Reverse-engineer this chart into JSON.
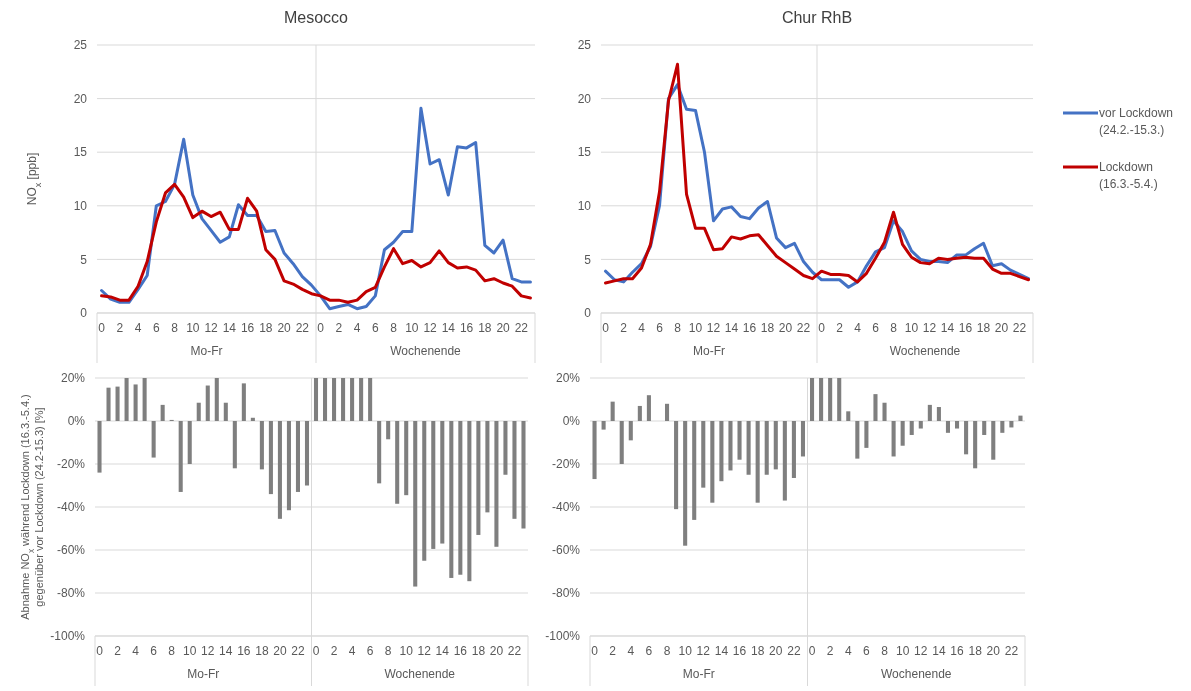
{
  "chart_data": [
    {
      "type": "line",
      "title": "Mesocco",
      "ylabel": "NO$_{x}$ [ppb]",
      "categories": [
        "0",
        null,
        "2",
        null,
        "4",
        null,
        "6",
        null,
        "8",
        null,
        "10",
        null,
        "12",
        null,
        "14",
        null,
        "16",
        null,
        "18",
        null,
        "20",
        null,
        "22",
        null,
        "0",
        null,
        "2",
        null,
        "4",
        null,
        "6",
        null,
        "8",
        null,
        "10",
        null,
        "12",
        null,
        "14",
        null,
        "16",
        null,
        "18",
        null,
        "20",
        null,
        "22",
        null
      ],
      "series": [
        {
          "color": "#4472c4",
          "values": [
            2.1,
            1.3,
            1.0,
            1.0,
            2.2,
            3.5,
            10.0,
            10.4,
            12.0,
            16.2,
            11.0,
            8.8,
            7.7,
            6.6,
            7.1,
            10.1,
            9.1,
            9.1,
            7.6,
            7.7,
            5.6,
            4.6,
            3.4,
            2.6,
            1.6,
            0.4,
            0.6,
            0.8,
            0.4,
            0.6,
            1.6,
            5.9,
            6.6,
            7.6,
            7.6,
            19.1,
            13.9,
            14.3,
            11.0,
            15.5,
            15.4,
            15.9,
            6.3,
            5.6,
            6.8,
            3.2,
            2.9,
            2.9
          ]
        },
        {
          "color": "#c00000",
          "values": [
            1.6,
            1.5,
            1.2,
            1.2,
            2.5,
            4.8,
            8.5,
            11.2,
            12.0,
            10.8,
            8.9,
            9.5,
            9.0,
            9.4,
            7.8,
            7.8,
            10.7,
            9.5,
            5.9,
            5.0,
            3.0,
            2.7,
            2.2,
            1.8,
            1.6,
            1.2,
            1.2,
            1.0,
            1.2,
            2.0,
            2.4,
            4.3,
            6.0,
            4.6,
            4.9,
            4.3,
            4.7,
            5.8,
            4.7,
            4.2,
            4.3,
            4.0,
            3.0,
            3.2,
            2.8,
            2.5,
            1.6,
            1.4
          ]
        }
      ],
      "ylim": [
        0,
        25
      ],
      "yticks": [
        0,
        5,
        10,
        15,
        20,
        25
      ],
      "grid": "y",
      "annotations": [
        "Mo-Fr",
        "Wochenende"
      ]
    },
    {
      "type": "line",
      "title": "Chur RhB",
      "categories": [
        "0",
        null,
        "2",
        null,
        "4",
        null,
        "6",
        null,
        "8",
        null,
        "10",
        null,
        "12",
        null,
        "14",
        null,
        "16",
        null,
        "18",
        null,
        "20",
        null,
        "22",
        null,
        "0",
        null,
        "2",
        null,
        "4",
        null,
        "6",
        null,
        "8",
        null,
        "10",
        null,
        "12",
        null,
        "14",
        null,
        "16",
        null,
        "18",
        null,
        "20",
        null,
        "22",
        null
      ],
      "series": [
        {
          "name": "vor Lockdown\n(24.2.-15.3.)",
          "color": "#4472c4",
          "values": [
            3.9,
            3.1,
            2.9,
            3.8,
            4.6,
            6.2,
            10.0,
            20.0,
            21.3,
            19.0,
            18.9,
            15.0,
            8.6,
            9.7,
            9.9,
            9.0,
            8.8,
            9.8,
            10.4,
            7.0,
            6.1,
            6.5,
            4.8,
            3.8,
            3.1,
            3.1,
            3.1,
            2.4,
            2.9,
            4.4,
            5.7,
            6.1,
            8.6,
            7.6,
            5.8,
            5.0,
            4.8,
            4.8,
            4.7,
            5.4,
            5.4,
            6.0,
            6.5,
            4.4,
            4.6,
            4.0,
            3.6,
            3.2
          ]
        },
        {
          "name": "Lockdown\n(16.3.-5.4.)",
          "color": "#c00000",
          "values": [
            2.8,
            3.0,
            3.2,
            3.2,
            4.2,
            6.4,
            11.3,
            19.8,
            23.2,
            11.1,
            7.9,
            7.9,
            5.9,
            6.0,
            7.1,
            6.9,
            7.2,
            7.3,
            6.3,
            5.3,
            4.7,
            4.1,
            3.5,
            3.2,
            3.9,
            3.6,
            3.6,
            3.5,
            2.9,
            3.7,
            5.1,
            6.6,
            9.4,
            6.4,
            5.2,
            4.7,
            4.6,
            5.1,
            5.0,
            5.1,
            5.2,
            5.1,
            5.1,
            4.1,
            3.7,
            3.7,
            3.4,
            3.1
          ]
        }
      ],
      "ylim": [
        0,
        25
      ],
      "yticks": [
        0,
        5,
        10,
        15,
        20,
        25
      ],
      "grid": "y",
      "legend": "right",
      "annotations": [
        "Mo-Fr",
        "Wochenende"
      ]
    },
    {
      "type": "bar",
      "ylabel": "Abnahme NO$_{x}$ während Lockdown (16.3.-5.4.)\ngegenüber vor Lockdown (24.2-15.3) [%]",
      "categories": [
        "0",
        null,
        "2",
        null,
        "4",
        null,
        "6",
        null,
        "8",
        null,
        "10",
        null,
        "12",
        null,
        "14",
        null,
        "16",
        null,
        "18",
        null,
        "20",
        null,
        "22",
        null,
        "0",
        null,
        "2",
        null,
        "4",
        null,
        "6",
        null,
        "8",
        null,
        "10",
        null,
        "12",
        null,
        "14",
        null,
        "16",
        null,
        "18",
        null,
        "20",
        null,
        "22",
        null
      ],
      "series": [
        {
          "color": "#7f7f7f",
          "values": [
            -24,
            15.5,
            16,
            20,
            17,
            20,
            -17,
            7.5,
            0.5,
            -33,
            -20,
            8.5,
            16.5,
            20,
            8.5,
            -22,
            17.5,
            1.5,
            -22.5,
            -34,
            -45.5,
            -41.5,
            -33,
            -30,
            20,
            20,
            20,
            20,
            20,
            20,
            20,
            -29,
            -8.5,
            -38.5,
            -34.5,
            -77,
            -65,
            -59.5,
            -57,
            -73,
            -71.5,
            -74.5,
            -53,
            -42.5,
            -58.5,
            -25,
            -45.5,
            -50
          ]
        }
      ],
      "ylim": [
        -100,
        20
      ],
      "yticks": [
        {
          "value": -100,
          "label": "-100%"
        },
        {
          "value": -80,
          "label": "-80%"
        },
        {
          "value": -60,
          "label": "-60%"
        },
        {
          "value": -40,
          "label": "-40%"
        },
        {
          "value": -20,
          "label": "-20%"
        },
        {
          "value": 0,
          "label": "0%"
        },
        {
          "value": 20,
          "label": "20%"
        }
      ],
      "grid": "y",
      "annotations": [
        "Mo-Fr",
        "Wochenende"
      ]
    },
    {
      "type": "bar",
      "categories": [
        "0",
        null,
        "2",
        null,
        "4",
        null,
        "6",
        null,
        "8",
        null,
        "10",
        null,
        "12",
        null,
        "14",
        null,
        "16",
        null,
        "18",
        null,
        "20",
        null,
        "22",
        null,
        "0",
        null,
        "2",
        null,
        "4",
        null,
        "6",
        null,
        "8",
        null,
        "10",
        null,
        "12",
        null,
        "14",
        null,
        "16",
        null,
        "18",
        null,
        "20",
        null,
        "22",
        null
      ],
      "series": [
        {
          "color": "#7f7f7f",
          "values": [
            -27,
            -4,
            9,
            -20,
            -9,
            7,
            12,
            0,
            8,
            -41,
            -58,
            -46,
            -31,
            -38,
            -28,
            -23,
            -18,
            -25,
            -38,
            -25,
            -22.5,
            -37,
            -26.5,
            -16.5,
            20,
            20,
            20,
            20,
            4.5,
            -17.5,
            -12.5,
            12.5,
            8.5,
            -16.5,
            -11.5,
            -6.5,
            -3.5,
            7.5,
            6.5,
            -5.5,
            -3.5,
            -15.5,
            -22,
            -6.5,
            -18,
            -5.5,
            -3,
            2.5
          ]
        }
      ],
      "ylim": [
        -100,
        20
      ],
      "yticks": [
        {
          "value": -100,
          "label": "-100%"
        },
        {
          "value": -80,
          "label": "-80%"
        },
        {
          "value": -60,
          "label": "-60%"
        },
        {
          "value": -40,
          "label": "-40%"
        },
        {
          "value": -20,
          "label": "-20%"
        },
        {
          "value": 0,
          "label": "0%"
        },
        {
          "value": 20,
          "label": "20%"
        }
      ],
      "grid": "y",
      "annotations": [
        "Mo-Fr",
        "Wochenende"
      ]
    }
  ]
}
